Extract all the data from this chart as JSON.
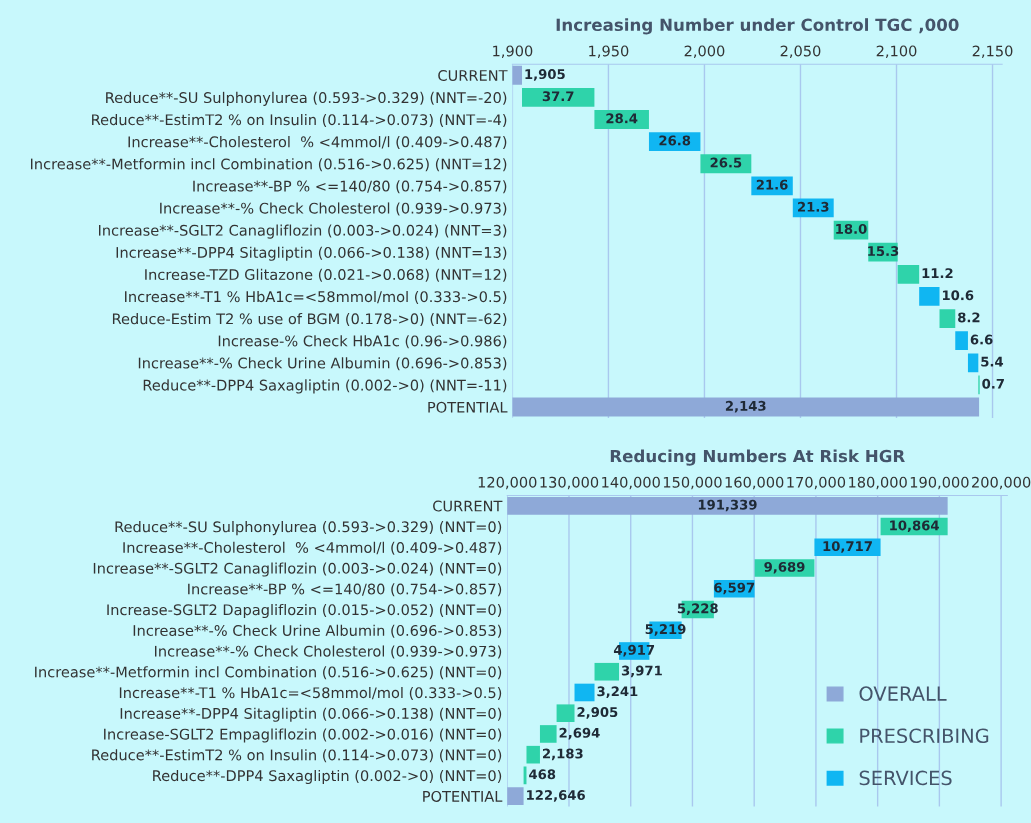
{
  "chart_data": [
    {
      "type": "bar",
      "orientation": "horizontal",
      "title": "Increasing Number under Control TGC ,000",
      "categories": [
        "CURRENT",
        "Reduce**-SU Sulphonylurea (0.593->0.329) (NNT=-20)",
        "Reduce**-EstimT2 % on Insulin (0.114->0.073) (NNT=-4)",
        "Increase**-Cholesterol  % <4mmol/l (0.409->0.487)",
        "Increase**-Metformin incl Combination (0.516->0.625) (NNT=12)",
        "Increase**-BP % <=140/80 (0.754->0.857)",
        "Increase**-% Check Cholesterol (0.939->0.973)",
        "Increase**-SGLT2 Canagliflozin (0.003->0.024) (NNT=3)",
        "Increase**-DPP4 Sitagliptin (0.066->0.138) (NNT=13)",
        "Increase-TZD Glitazone (0.021->0.068) (NNT=12)",
        "Increase**-T1 % HbA1c=<58mmol/mol (0.333->0.5)",
        "Reduce-Estim T2 % use of BGM (0.178->0) (NNT=-62)",
        "Increase-% Check HbA1c (0.96->0.986)",
        "Increase**-% Check Urine Albumin (0.696->0.853)",
        "Reduce**-DPP4 Saxagliptin (0.002->0) (NNT=-11)",
        "POTENTIAL"
      ],
      "series": [
        {
          "color": "#8ea9d8",
          "values": [
            1905,
            null,
            null,
            null,
            null,
            null,
            null,
            null,
            null,
            null,
            null,
            null,
            null,
            null,
            null,
            2143
          ],
          "value_labels": [
            "1,905",
            null,
            null,
            null,
            null,
            null,
            null,
            null,
            null,
            null,
            null,
            null,
            null,
            null,
            null,
            "2,143"
          ]
        },
        {
          "color": "#2fd3aa",
          "base": [
            null,
            1905,
            1942.7,
            null,
            1997.9,
            null,
            null,
            2067.3,
            2085.3,
            2100.6,
            null,
            2122.4,
            null,
            null,
            2142.6,
            null
          ],
          "values": [
            null,
            37.7,
            28.4,
            null,
            26.5,
            null,
            null,
            18.0,
            15.3,
            11.2,
            null,
            8.2,
            null,
            null,
            0.7,
            null
          ],
          "value_labels": [
            null,
            "37.7",
            "28.4",
            null,
            "26.5",
            null,
            null,
            "18.0",
            "15.3",
            "11.2",
            null,
            "8.2",
            null,
            null,
            "0.7",
            null
          ]
        },
        {
          "color": "#10b6f2",
          "base": [
            null,
            null,
            null,
            1971.1,
            null,
            2024.4,
            2046.0,
            null,
            null,
            null,
            2111.8,
            null,
            2130.6,
            2137.2,
            null,
            null
          ],
          "values": [
            null,
            null,
            null,
            26.8,
            null,
            21.6,
            21.3,
            null,
            null,
            null,
            10.6,
            null,
            6.6,
            5.4,
            null,
            null
          ],
          "value_labels": [
            null,
            null,
            null,
            "26.8",
            null,
            "21.6",
            "21.3",
            null,
            null,
            null,
            "10.6",
            null,
            "6.6",
            "5.4",
            null,
            null
          ]
        }
      ],
      "xlim": [
        1900,
        2155
      ],
      "xticks": [
        {
          "value": 1900,
          "label": "1,900"
        },
        {
          "value": 1950,
          "label": "1,950"
        },
        {
          "value": 2000,
          "label": "2,000"
        },
        {
          "value": 2050,
          "label": "2,050"
        },
        {
          "value": 2100,
          "label": "2,100"
        },
        {
          "value": 2150,
          "label": "2,150"
        }
      ],
      "grid": "x",
      "legend": false
    },
    {
      "type": "bar",
      "orientation": "horizontal",
      "title": "Reducing Numbers At Risk HGR",
      "categories": [
        "CURRENT",
        "Reduce**-SU Sulphonylurea (0.593->0.329) (NNT=0)",
        "Increase**-Cholesterol  % <4mmol/l (0.409->0.487)",
        "Increase**-SGLT2 Canagliflozin (0.003->0.024) (NNT=0)",
        "Increase**-BP % <=140/80 (0.754->0.857)",
        "Increase-SGLT2 Dapagliflozin (0.015->0.052) (NNT=0)",
        "Increase**-% Check Urine Albumin (0.696->0.853)",
        "Increase**-% Check Cholesterol (0.939->0.973)",
        "Increase**-Metformin incl Combination (0.516->0.625) (NNT=0)",
        "Increase**-T1 % HbA1c=<58mmol/mol (0.333->0.5)",
        "Increase**-DPP4 Sitagliptin (0.066->0.138) (NNT=0)",
        "Increase-SGLT2 Empagliflozin (0.002->0.016) (NNT=0)",
        "Reduce**-EstimT2 % on Insulin (0.114->0.073) (NNT=0)",
        "Reduce**-DPP4 Saxagliptin (0.002->0) (NNT=0)",
        "POTENTIAL"
      ],
      "series": [
        {
          "name": "OVERALL",
          "color": "#8ea9d8",
          "values": [
            191339,
            null,
            null,
            null,
            null,
            null,
            null,
            null,
            null,
            null,
            null,
            null,
            null,
            null,
            122646
          ],
          "value_labels": [
            "191,339",
            null,
            null,
            null,
            null,
            null,
            null,
            null,
            null,
            null,
            null,
            null,
            null,
            null,
            "122,646"
          ]
        },
        {
          "name": "PRESCRIBING",
          "color": "#2fd3aa",
          "base": [
            null,
            180475,
            null,
            160069,
            null,
            148244,
            null,
            null,
            134137,
            null,
            127991,
            125297,
            123114,
            122646,
            null
          ],
          "values": [
            null,
            10864,
            null,
            9689,
            null,
            5228,
            null,
            null,
            3971,
            null,
            2905,
            2694,
            2183,
            468,
            null
          ],
          "value_labels": [
            null,
            "10,864",
            null,
            "9,689",
            null,
            "5,228",
            null,
            null,
            "3,971",
            null,
            "2,905",
            "2,694",
            "2,183",
            "468",
            null
          ]
        },
        {
          "name": "SERVICES",
          "color": "#10b6f2",
          "base": [
            null,
            null,
            169758,
            null,
            153472,
            null,
            143025,
            138108,
            null,
            130896,
            null,
            null,
            null,
            null,
            null
          ],
          "values": [
            null,
            null,
            10717,
            null,
            6597,
            null,
            5219,
            4917,
            null,
            3241,
            null,
            null,
            null,
            null,
            null
          ],
          "value_labels": [
            null,
            null,
            "10,717",
            null,
            "6,597",
            null,
            "5,219",
            "4,917",
            null,
            "3,241",
            null,
            null,
            null,
            null,
            null
          ]
        }
      ],
      "xlim": [
        120000,
        201000
      ],
      "xticks": [
        {
          "value": 120000,
          "label": "120,000"
        },
        {
          "value": 130000,
          "label": "130,000"
        },
        {
          "value": 140000,
          "label": "140,000"
        },
        {
          "value": 150000,
          "label": "150,000"
        },
        {
          "value": 160000,
          "label": "160,000"
        },
        {
          "value": 170000,
          "label": "170,000"
        },
        {
          "value": 180000,
          "label": "180,000"
        },
        {
          "value": 190000,
          "label": "190,000"
        },
        {
          "value": 200000,
          "label": "200,000"
        }
      ],
      "grid": "x",
      "legend": "bottom right"
    }
  ]
}
